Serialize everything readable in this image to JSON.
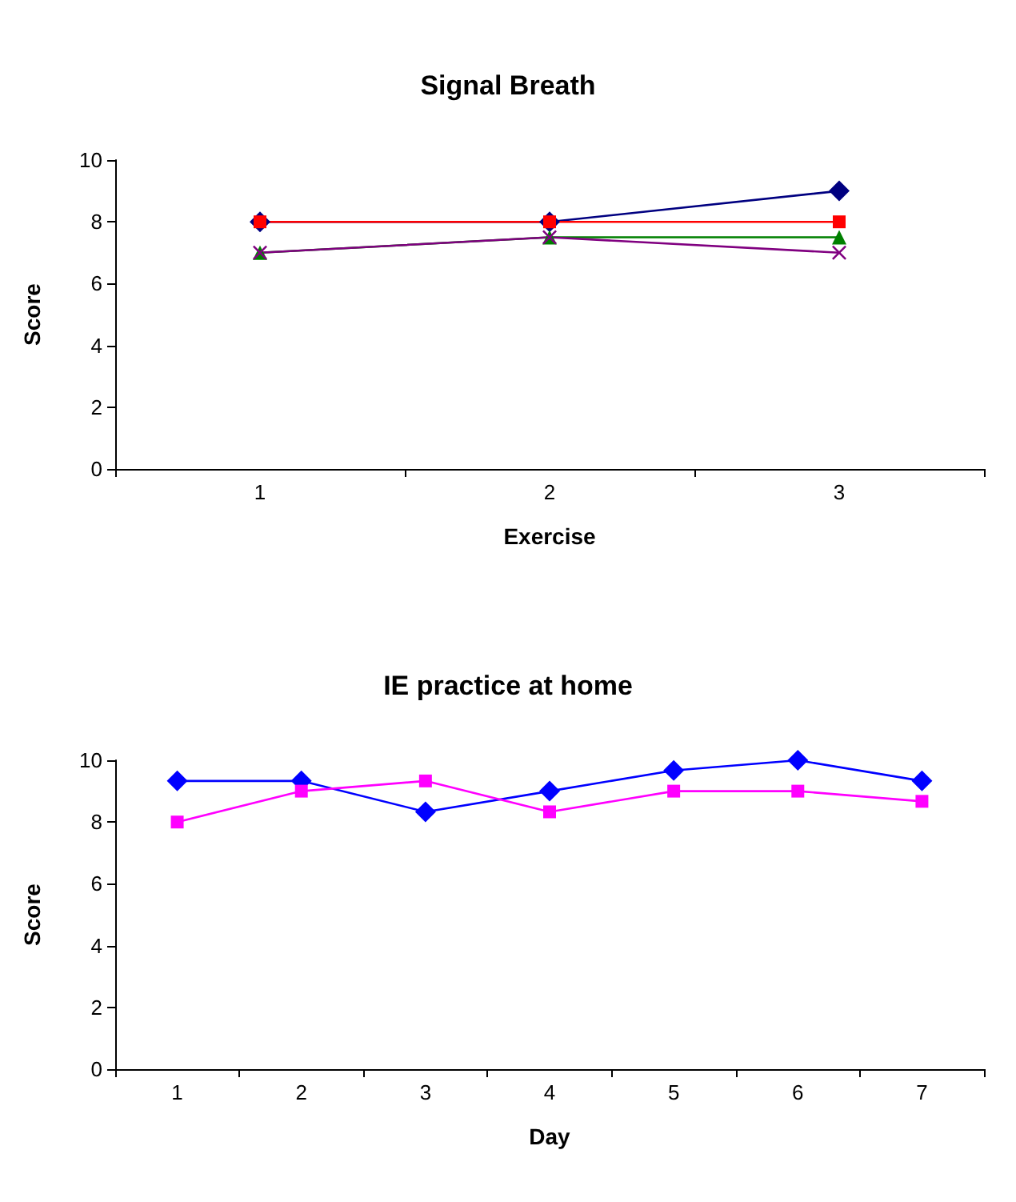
{
  "chart_data": [
    {
      "type": "line",
      "title": "Signal Breath",
      "xlabel": "Exercise",
      "ylabel": "Score",
      "categories": [
        "1",
        "2",
        "3"
      ],
      "ylim": [
        0,
        10
      ],
      "yticks": [
        0,
        2,
        4,
        6,
        8,
        10
      ],
      "grid": false,
      "series": [
        {
          "color": "#000080",
          "marker": "diamond",
          "values": [
            8,
            8,
            9
          ]
        },
        {
          "color": "#ff0000",
          "marker": "square",
          "values": [
            8,
            8,
            8
          ]
        },
        {
          "color": "#008000",
          "marker": "triangle",
          "values": [
            7,
            7.5,
            7.5
          ]
        },
        {
          "color": "#800080",
          "marker": "cross",
          "values": [
            7,
            7.5,
            7
          ]
        }
      ]
    },
    {
      "type": "line",
      "title": "IE practice at home",
      "xlabel": "Day",
      "ylabel": "Score",
      "categories": [
        "1",
        "2",
        "3",
        "4",
        "5",
        "6",
        "7"
      ],
      "ylim": [
        0,
        10
      ],
      "yticks": [
        0,
        2,
        4,
        6,
        8,
        10
      ],
      "grid": false,
      "series": [
        {
          "color": "#0000ff",
          "marker": "diamond",
          "values": [
            9.33,
            9.33,
            8.33,
            9,
            9.67,
            10,
            9.33
          ]
        },
        {
          "color": "#ff00ff",
          "marker": "square",
          "values": [
            8,
            9,
            9.33,
            8.33,
            9,
            9,
            8.67
          ]
        }
      ]
    }
  ]
}
